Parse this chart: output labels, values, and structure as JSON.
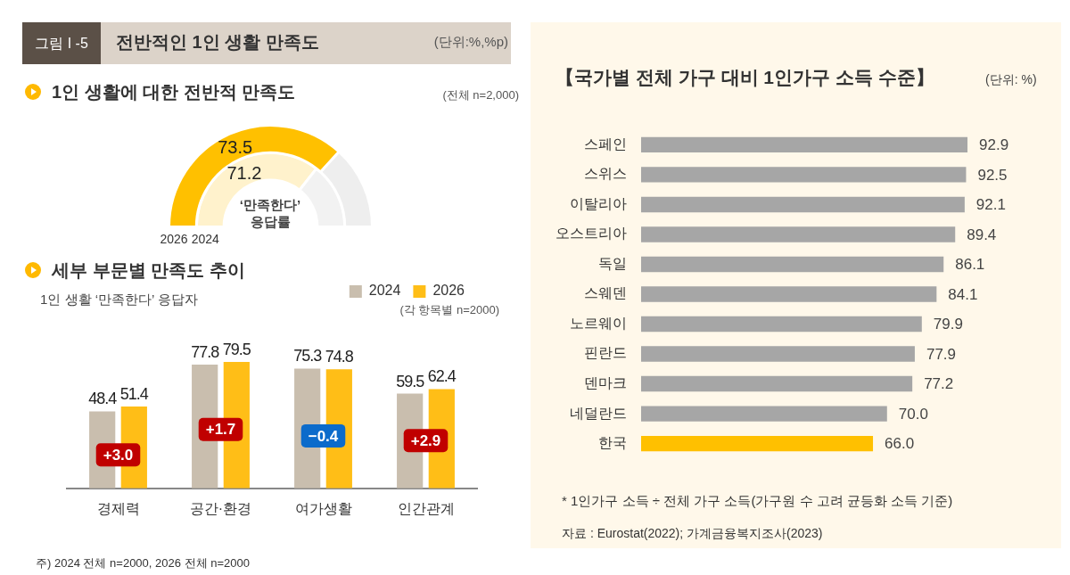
{
  "chart_data": [
    {
      "type": "donut",
      "title": "1인 생활에 대한 전반적 만족도",
      "categories": [
        null,
        null
      ],
      "series": [
        {
          "name": "2026",
          "colors": [
            "#ffc000",
            "#eeeeee"
          ],
          "values": [
            73.5,
            26.5
          ],
          "value_labels": [
            "73.5",
            null
          ]
        },
        {
          "name": "2024",
          "colors": [
            "#fff2cc",
            "#f2f2f2"
          ],
          "values": [
            71.2,
            28.8
          ],
          "value_labels": [
            "71.2",
            null
          ]
        }
      ],
      "legend": false,
      "annotations": [
        "그림 I -5",
        "전반적인 1인 생활 만족도",
        "(단위:%,%p)",
        "(전체 n=2,000)",
        "‘만족한다’ 응답률"
      ]
    },
    {
      "type": "bar",
      "title": "세부 부문별 만족도 추이",
      "subtitle": "1인 생활 ‘만족한다’ 응답자",
      "categories": [
        "경제력",
        "공간·환경",
        "여가생활",
        "인간관계"
      ],
      "series": [
        {
          "name": "2024",
          "color": "#c9beae",
          "values": [
            48.4,
            77.8,
            75.3,
            59.5
          ]
        },
        {
          "name": "2026",
          "color": "#ffbe17",
          "values": [
            51.4,
            79.5,
            74.8,
            62.4
          ]
        }
      ],
      "tick_labels": "x",
      "grid": false,
      "legend": "top right",
      "data_labels": true,
      "annotations": [
        "(각 항목별 n=2000)",
        "주) 2024 전체 n=2000, 2026 전체 n=2000",
        {
          "text": "+3.0",
          "x": "경제력",
          "y": 21
        },
        {
          "text": "+1.7",
          "x": "공간·환경",
          "y": 37
        },
        {
          "text": "−0.4",
          "x": "여가생활",
          "y": 33
        },
        {
          "text": "+2.9",
          "x": "인간관계",
          "y": 30
        }
      ]
    },
    {
      "type": "bar",
      "orientation": "horizontal",
      "title": "【국가별 전체 가구 대비 1인가구 소득 수준】",
      "categories": [
        "스페인",
        "스위스",
        "이탈리아",
        "오스트리아",
        "독일",
        "스웨덴",
        "노르웨이",
        "핀란드",
        "덴마크",
        "네덜란드",
        "한국"
      ],
      "values": [
        92.9,
        92.5,
        92.1,
        89.4,
        86.1,
        84.1,
        79.9,
        77.9,
        77.2,
        70.0,
        66.0
      ],
      "value_labels": [
        "92.9",
        "92.5",
        "92.1",
        "89.4",
        "86.1",
        "84.1",
        "79.9",
        "77.9",
        "77.2",
        "70.0",
        "66.0"
      ],
      "colors": [
        "#a6a6a6",
        "#a6a6a6",
        "#a6a6a6",
        "#a6a6a6",
        "#a6a6a6",
        "#a6a6a6",
        "#a6a6a6",
        "#a6a6a6",
        "#a6a6a6",
        "#a6a6a6",
        "#ffc000"
      ],
      "tick_labels": "y",
      "grid": false,
      "legend": false,
      "annotations": [
        "(단위: %)",
        "* 1인가구 소득 ÷ 전체 가구 소득(가구원 수 고려 균등화 소득 기준)",
        "자료 : Eurostat(2022); 가계금융복지조사(2023)"
      ]
    }
  ]
}
